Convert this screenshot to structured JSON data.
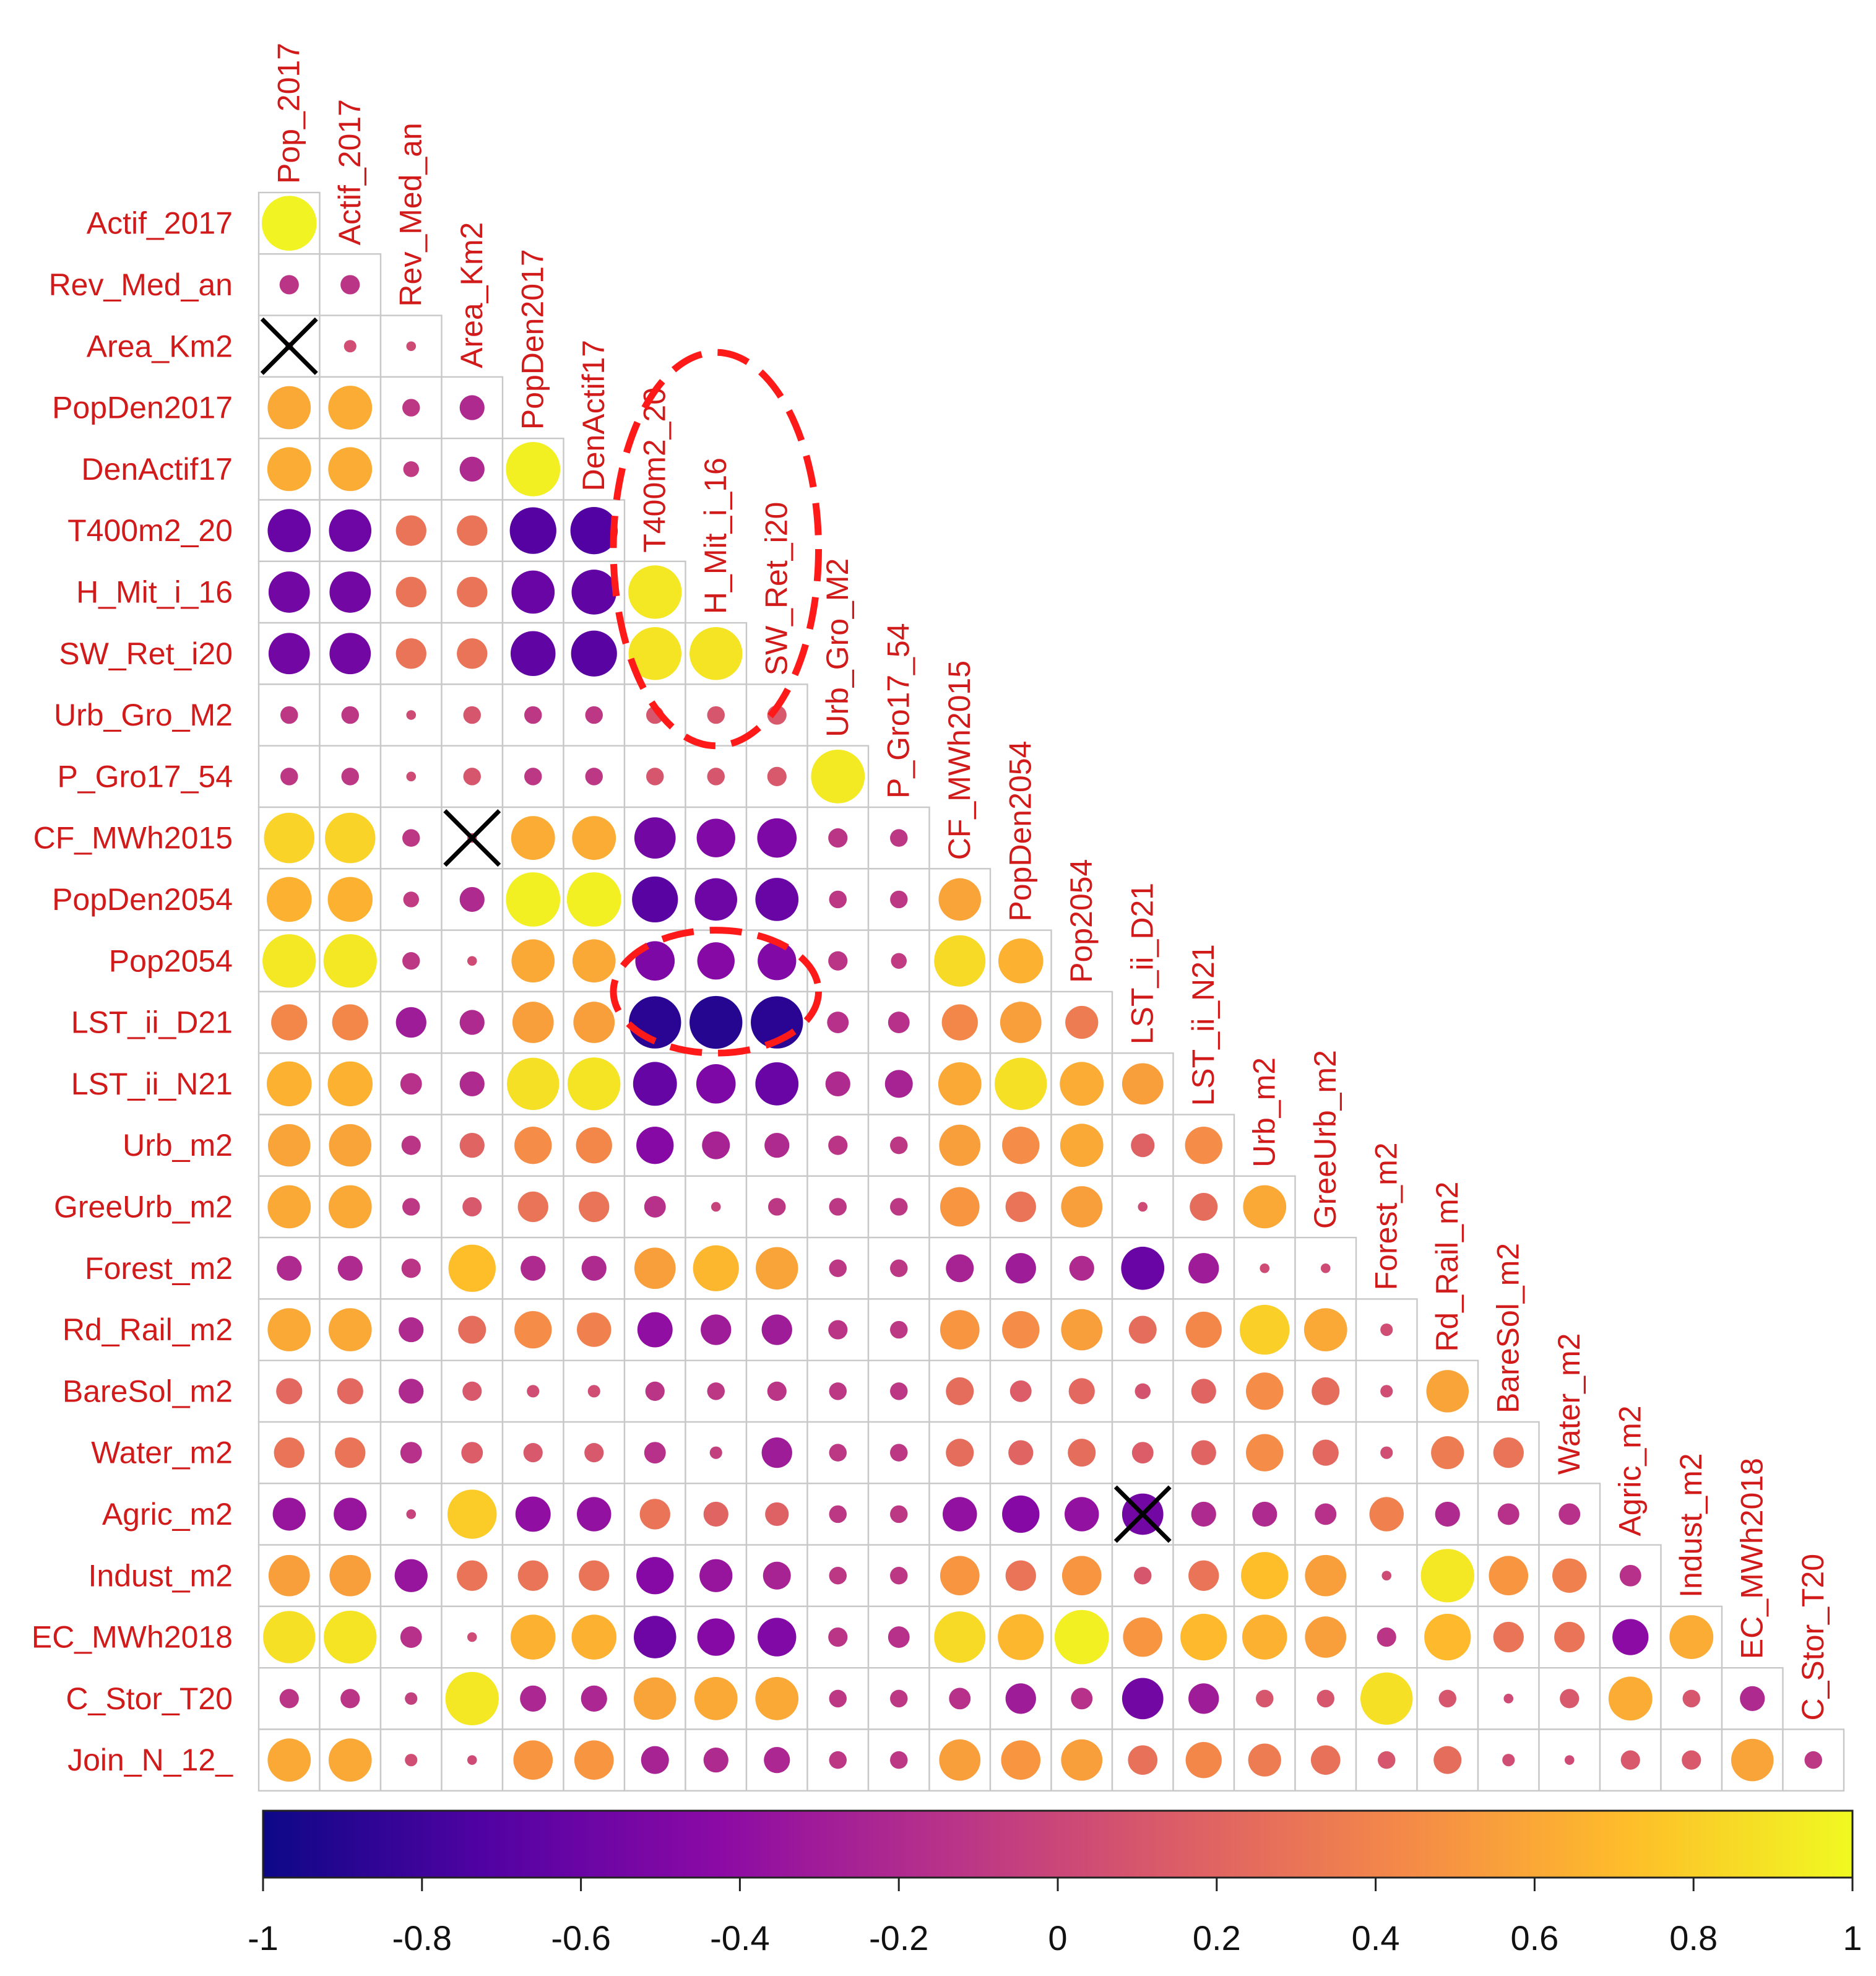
{
  "chart_data": {
    "type": "heatmap",
    "subtype": "lower-triangular correlation matrix (circle glyphs)",
    "variables": [
      "Pop_2017",
      "Actif_2017",
      "Rev_Med_an",
      "Area_Km2",
      "PopDen2017",
      "DenActif17",
      "T400m2_20",
      "H_Mit_i_16",
      "SW_Ret_i20",
      "Urb_Gro_M2",
      "P_Gro17_54",
      "CF_MWh2015",
      "PopDen2054",
      "Pop2054",
      "LST_ii_D21",
      "LST_ii_N21",
      "Urb_m2",
      "GreeUrb_m2",
      "Forest_m2",
      "Rd_Rail_m2",
      "BareSol_m2",
      "Water_m2",
      "Agric_m2",
      "Indust_m2",
      "EC_MWh2018",
      "C_Stor_T20",
      "Join_N_12_"
    ],
    "row_labels": [
      "Actif_2017",
      "Rev_Med_an",
      "Area_Km2",
      "PopDen2017",
      "DenActif17",
      "T400m2_20",
      "H_Mit_i_16",
      "SW_Ret_i20",
      "Urb_Gro_M2",
      "P_Gro17_54",
      "CF_MWh2015",
      "PopDen2054",
      "Pop2054",
      "LST_ii_D21",
      "LST_ii_N21",
      "Urb_m2",
      "GreeUrb_m2",
      "Forest_m2",
      "Rd_Rail_m2",
      "BareSol_m2",
      "Water_m2",
      "Agric_m2",
      "Indust_m2",
      "EC_MWh2018",
      "C_Stor_T20",
      "Join_N_12_"
    ],
    "column_labels": [
      "Pop_2017",
      "Actif_2017",
      "Rev_Med_an",
      "Area_Km2",
      "PopDen2017",
      "DenActif17",
      "T400m2_20",
      "H_Mit_i_16",
      "SW_Ret_i20",
      "Urb_Gro_M2",
      "P_Gro17_54",
      "CF_MWh2015",
      "PopDen2054",
      "Pop2054",
      "LST_ii_D21",
      "LST_ii_N21",
      "Urb_m2",
      "GreeUrb_m2",
      "Forest_m2",
      "Rd_Rail_m2",
      "BareSol_m2",
      "Water_m2",
      "Agric_m2",
      "Indust_m2",
      "EC_MWh2018",
      "C_Stor_T20"
    ],
    "correlations": [
      [
        0.97
      ],
      [
        -0.12,
        -0.12
      ],
      [
        0.02,
        0.05,
        0.03
      ],
      [
        0.6,
        0.62,
        -0.1,
        -0.2
      ],
      [
        0.62,
        0.62,
        -0.08,
        -0.2,
        0.95
      ],
      [
        -0.6,
        -0.58,
        0.3,
        0.3,
        -0.7,
        -0.72
      ],
      [
        -0.55,
        -0.55,
        0.3,
        0.3,
        -0.6,
        -0.65,
        0.92
      ],
      [
        -0.55,
        -0.55,
        0.3,
        0.3,
        -0.65,
        -0.68,
        0.9,
        0.9
      ],
      [
        -0.1,
        -0.1,
        0.03,
        0.1,
        -0.1,
        -0.1,
        0.1,
        0.1,
        0.12
      ],
      [
        -0.1,
        -0.1,
        0.03,
        0.1,
        -0.1,
        -0.1,
        0.1,
        0.1,
        0.12,
        0.93
      ],
      [
        0.82,
        0.82,
        -0.1,
        0.03,
        0.62,
        0.62,
        -0.55,
        -0.48,
        -0.5,
        -0.12,
        -0.1
      ],
      [
        0.65,
        0.65,
        -0.08,
        -0.2,
        0.95,
        0.95,
        -0.68,
        -0.58,
        -0.6,
        -0.1,
        -0.1,
        0.58
      ],
      [
        0.92,
        0.92,
        -0.1,
        0.03,
        0.6,
        0.6,
        -0.5,
        -0.45,
        -0.48,
        -0.12,
        -0.08,
        0.85,
        0.65
      ],
      [
        0.42,
        0.42,
        -0.3,
        -0.2,
        0.55,
        0.55,
        -0.88,
        -0.9,
        -0.88,
        -0.15,
        -0.15,
        0.42,
        0.55,
        0.35
      ],
      [
        0.65,
        0.65,
        -0.15,
        -0.2,
        0.88,
        0.9,
        -0.62,
        -0.5,
        -0.6,
        -0.2,
        -0.25,
        0.6,
        0.88,
        0.62,
        0.55
      ],
      [
        0.58,
        0.58,
        -0.12,
        0.2,
        0.45,
        0.42,
        -0.45,
        -0.25,
        -0.2,
        -0.12,
        -0.1,
        0.55,
        0.45,
        0.6,
        0.18,
        0.45
      ],
      [
        0.6,
        0.6,
        -0.1,
        0.12,
        0.3,
        0.3,
        -0.15,
        -0.03,
        -0.1,
        -0.1,
        -0.1,
        0.5,
        0.3,
        0.55,
        0.03,
        0.25,
        0.6
      ],
      [
        -0.2,
        -0.2,
        -0.12,
        0.72,
        -0.2,
        -0.2,
        0.55,
        0.68,
        0.58,
        -0.1,
        -0.1,
        -0.25,
        -0.3,
        -0.2,
        -0.6,
        -0.3,
        0.03,
        0.03
      ],
      [
        0.6,
        0.6,
        -0.2,
        0.25,
        0.45,
        0.38,
        -0.4,
        -0.3,
        -0.3,
        -0.12,
        -0.1,
        0.5,
        0.45,
        0.55,
        0.25,
        0.42,
        0.8,
        0.6,
        0.05
      ],
      [
        0.22,
        0.22,
        -0.2,
        0.12,
        0.05,
        0.05,
        -0.12,
        -0.1,
        -0.12,
        -0.1,
        -0.1,
        0.25,
        0.15,
        0.22,
        0.08,
        0.2,
        0.45,
        0.25,
        0.05,
        0.58
      ],
      [
        0.3,
        0.3,
        -0.15,
        0.15,
        0.12,
        0.12,
        -0.15,
        -0.05,
        -0.3,
        -0.1,
        -0.1,
        0.25,
        0.2,
        0.25,
        0.15,
        0.2,
        0.45,
        0.22,
        0.05,
        0.35,
        0.3
      ],
      [
        -0.35,
        -0.35,
        -0.03,
        0.78,
        -0.4,
        -0.38,
        0.3,
        0.2,
        0.18,
        -0.1,
        -0.1,
        -0.38,
        -0.45,
        -0.38,
        -0.55,
        -0.2,
        -0.2,
        -0.15,
        0.38,
        -0.2,
        -0.15,
        -0.15
      ],
      [
        0.55,
        0.55,
        -0.35,
        0.3,
        0.3,
        0.3,
        -0.45,
        -0.35,
        -0.25,
        -0.1,
        -0.1,
        0.5,
        0.3,
        0.5,
        0.1,
        0.3,
        0.72,
        0.55,
        0.03,
        0.92,
        0.5,
        0.38,
        -0.15
      ],
      [
        0.88,
        0.9,
        -0.15,
        0.03,
        0.65,
        0.65,
        -0.58,
        -0.45,
        -0.48,
        -0.12,
        -0.15,
        0.85,
        0.68,
        0.95,
        0.5,
        0.7,
        0.65,
        0.55,
        -0.12,
        0.7,
        0.3,
        0.3,
        -0.42,
        0.62
      ],
      [
        -0.12,
        -0.12,
        -0.05,
        0.92,
        -0.22,
        -0.22,
        0.58,
        0.6,
        0.6,
        -0.1,
        -0.1,
        -0.15,
        -0.3,
        -0.15,
        -0.55,
        -0.3,
        0.1,
        0.1,
        0.88,
        0.1,
        0.03,
        0.12,
        0.62,
        0.1,
        -0.2
      ],
      [
        0.6,
        0.6,
        0.05,
        0.03,
        0.5,
        0.5,
        -0.25,
        -0.2,
        -0.22,
        -0.1,
        -0.1,
        0.55,
        0.5,
        0.55,
        0.28,
        0.42,
        0.35,
        0.28,
        0.1,
        0.25,
        0.05,
        0.03,
        0.12,
        0.12,
        0.58,
        -0.1
      ]
    ],
    "crossed_cells": [
      [
        2,
        0
      ],
      [
        10,
        3
      ],
      [
        21,
        14
      ]
    ],
    "highlight_annotations": [
      {
        "description": "dashed red ellipse",
        "rows": [
          "T400m2_20",
          "H_Mit_i_16",
          "SW_Ret_i20",
          "Urb_Gro_M2"
        ],
        "columns": [
          "T400m2_20",
          "H_Mit_i_16",
          "SW_Ret_i20"
        ]
      },
      {
        "description": "dashed red ellipse",
        "rows": [
          "Pop2054",
          "LST_ii_D21"
        ],
        "columns": [
          "T400m2_20",
          "H_Mit_i_16",
          "SW_Ret_i20"
        ]
      }
    ],
    "colorbar": {
      "range": [
        -1,
        1
      ],
      "tick_labels": [
        "-1",
        "-0.8",
        "-0.6",
        "-0.4",
        "-0.2",
        "0",
        "0.2",
        "0.4",
        "0.6",
        "0.8",
        "1"
      ],
      "colormap": "plasma",
      "color_stops": [
        "#0d0887",
        "#5302a3",
        "#8b0aa5",
        "#b83289",
        "#db5c68",
        "#f48849",
        "#febd2a",
        "#f0f921"
      ]
    },
    "colors": {
      "label": "#d11a1a",
      "grid": "#c8c8c8",
      "cross": "#000000",
      "annotation": "#ff1a1a"
    }
  }
}
